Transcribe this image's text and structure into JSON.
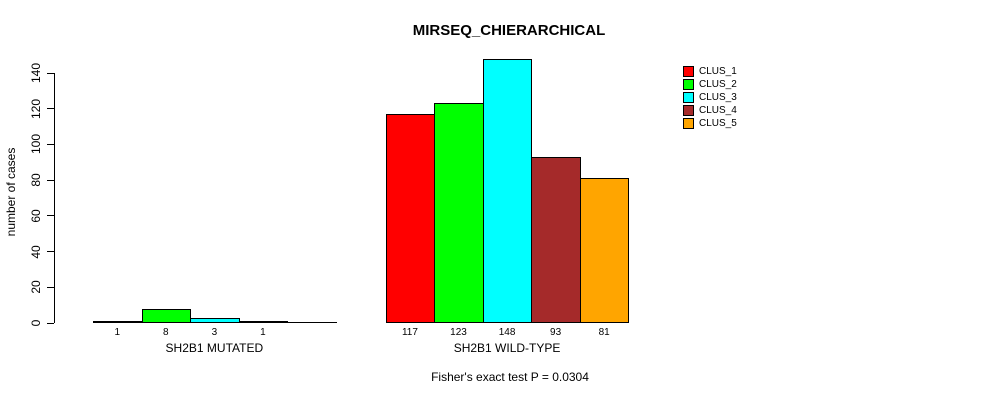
{
  "chart_data": {
    "type": "bar",
    "title": "MIRSEQ_CHIERARCHICAL",
    "ylabel": "number of cases",
    "ylim": [
      0,
      140
    ],
    "yticks": [
      0,
      20,
      40,
      60,
      80,
      100,
      120,
      140
    ],
    "grid": false,
    "legend_position": "right",
    "categories": [
      "SH2B1 MUTATED",
      "SH2B1 WILD-TYPE"
    ],
    "groups": [
      {
        "label": "SH2B1 MUTATED",
        "values": [
          1,
          8,
          3,
          1,
          0
        ],
        "bar_labels": [
          "1",
          "8",
          "3",
          "1",
          ""
        ]
      },
      {
        "label": "SH2B1 WILD-TYPE",
        "values": [
          117,
          123,
          148,
          93,
          81
        ],
        "bar_labels": [
          "117",
          "123",
          "148",
          "93",
          "81"
        ]
      }
    ],
    "series": [
      {
        "name": "CLUS_1",
        "color": "#FF0000",
        "values": [
          1,
          117
        ]
      },
      {
        "name": "CLUS_2",
        "color": "#00FF00",
        "values": [
          8,
          123
        ]
      },
      {
        "name": "CLUS_3",
        "color": "#00FFFF",
        "values": [
          3,
          148
        ]
      },
      {
        "name": "CLUS_4",
        "color": "#A52A2A",
        "values": [
          1,
          93
        ]
      },
      {
        "name": "CLUS_5",
        "color": "#FFA500",
        "values": [
          0,
          81
        ]
      }
    ],
    "legend": [
      {
        "label": "CLUS_1",
        "color": "#FF0000"
      },
      {
        "label": "CLUS_2",
        "color": "#00FF00"
      },
      {
        "label": "CLUS_3",
        "color": "#00FFFF"
      },
      {
        "label": "CLUS_4",
        "color": "#A52A2A"
      },
      {
        "label": "CLUS_5",
        "color": "#FFA500"
      }
    ],
    "annotation": "Fisher's exact test P = 0.0304",
    "colors": {
      "background": "#FFFFFF",
      "axis": "#000000",
      "text": "#000000"
    }
  }
}
